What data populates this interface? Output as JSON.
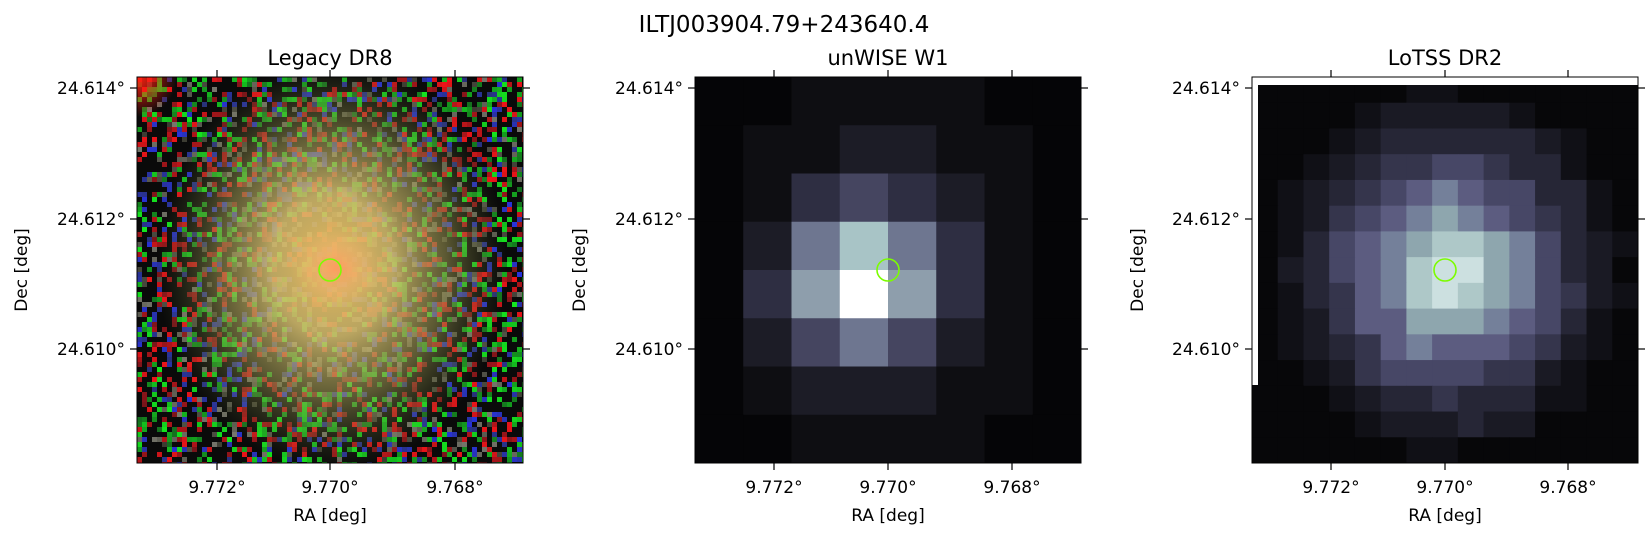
{
  "figure": {
    "suptitle": "ILTJ003904.79+243640.4"
  },
  "panels": [
    {
      "title": "Legacy DR8",
      "xlabel": "RA [deg]",
      "ylabel": "Dec [deg]",
      "xticks": [
        "9.772°",
        "9.770°",
        "9.768°"
      ],
      "yticks": [
        "24.614°",
        "24.612°",
        "24.610°"
      ],
      "marker_color": "#7cfc00"
    },
    {
      "title": "unWISE W1",
      "xlabel": "RA [deg]",
      "ylabel": "Dec [deg]",
      "xticks": [
        "9.772°",
        "9.770°",
        "9.768°"
      ],
      "yticks": [
        "24.614°",
        "24.612°",
        "24.610°"
      ],
      "marker_color": "#7cfc00"
    },
    {
      "title": "LoTSS DR2",
      "xlabel": "RA [deg]",
      "ylabel": "Dec [deg]",
      "xticks": [
        "9.772°",
        "9.770°",
        "9.768°"
      ],
      "yticks": [
        "24.614°",
        "24.612°",
        "24.610°"
      ],
      "marker_color": "#7cfc00"
    }
  ]
}
